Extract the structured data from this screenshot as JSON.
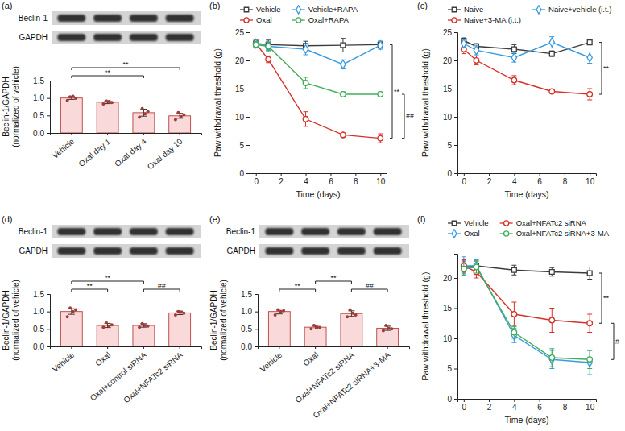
{
  "chart_data": [
    {
      "type": "bar",
      "title": "(a)",
      "blot": [
        "Beclin-1",
        "GAPDH"
      ],
      "categories": [
        "Vehicle",
        "Oxal day 1",
        "Oxal day 4",
        "Oxal day 10"
      ],
      "values": [
        1.0,
        0.88,
        0.58,
        0.49
      ],
      "errors": [
        0.04,
        0.04,
        0.1,
        0.07
      ],
      "points": [
        [
          0.93,
          1.03,
          1.05,
          0.99
        ],
        [
          0.83,
          0.92,
          0.9,
          0.87
        ],
        [
          0.45,
          0.7,
          0.55,
          0.62
        ],
        [
          0.38,
          0.58,
          0.47,
          0.52
        ]
      ],
      "color": "#f9d9d9",
      "ylabel": [
        "Beclin-1/GAPDH",
        "(normalized of vehicle)"
      ],
      "ylim": [
        0,
        1.5
      ],
      "yticks": [
        {
          "value": 0,
          "label": "0.0"
        },
        0.5,
        {
          "value": 1,
          "label": "1.0"
        },
        1.5
      ],
      "annotations": [
        {
          "text": "**",
          "from": "Vehicle",
          "to": "Oxal day 4"
        },
        {
          "text": "**",
          "from": "Vehicle",
          "to": "Oxal day 10"
        }
      ]
    },
    {
      "type": "line",
      "title": "(b)",
      "x": [
        0,
        1,
        4,
        7,
        10
      ],
      "xlim": [
        -0.5,
        10.5
      ],
      "xticks": [
        0,
        2,
        4,
        6,
        8,
        10
      ],
      "ylim": [
        0,
        25
      ],
      "yticks": [
        0,
        5,
        10,
        15,
        20,
        25
      ],
      "xlabel": "Time (days)",
      "ylabel": "Paw withdrawal threshold (g)",
      "legend": "top",
      "series": [
        {
          "name": "Vehicle",
          "color": "#3b3b3b",
          "marker": "square",
          "values": [
            23.0,
            22.8,
            22.6,
            22.7,
            22.8
          ],
          "errors": [
            0.6,
            0.8,
            0.8,
            1.2,
            0.6
          ]
        },
        {
          "name": "Oxal",
          "color": "#d7302a",
          "marker": "circle",
          "values": [
            23.0,
            20.2,
            9.6,
            6.8,
            6.2
          ],
          "errors": [
            0.5,
            0.6,
            1.3,
            0.7,
            0.8
          ]
        },
        {
          "name": "Vehicle+RAPA",
          "color": "#3a9ce0",
          "marker": "diamond",
          "values": [
            23.0,
            22.5,
            22.0,
            19.3,
            22.7
          ],
          "errors": [
            0.6,
            0.8,
            1.0,
            0.8,
            0.7
          ]
        },
        {
          "name": "Oxal+RAPA",
          "color": "#3fae5a",
          "marker": "circle",
          "values": [
            22.8,
            22.5,
            16.0,
            14.0,
            14.0
          ],
          "errors": [
            0.6,
            0.7,
            1.0,
            0.4,
            0.4
          ]
        }
      ],
      "annotations": [
        {
          "text": "**",
          "from": "Vehicle",
          "to": "Oxal"
        },
        {
          "text": "##",
          "from": "Oxal+RAPA",
          "to": "Oxal"
        }
      ]
    },
    {
      "type": "line",
      "title": "(c)",
      "x": [
        0,
        1,
        4,
        7,
        10
      ],
      "xlim": [
        -0.5,
        10.5
      ],
      "xticks": [
        0,
        2,
        4,
        6,
        8,
        10
      ],
      "ylim": [
        0,
        25
      ],
      "yticks": [
        0,
        5,
        10,
        15,
        20,
        25
      ],
      "xlabel": "Time (days)",
      "ylabel": "Paw withdrawal threshold (g)",
      "legend": "top",
      "series": [
        {
          "name": "Naive",
          "color": "#3b3b3b",
          "marker": "square",
          "values": [
            23.5,
            22.5,
            22.0,
            21.2,
            23.2
          ],
          "errors": [
            0.5,
            0.5,
            0.8,
            0.5,
            0.4
          ]
        },
        {
          "name": "Naive+3-MA (i.t.)",
          "color": "#d7302a",
          "marker": "circle",
          "values": [
            22.0,
            20.0,
            16.5,
            14.5,
            14.0
          ],
          "errors": [
            0.8,
            0.8,
            0.8,
            0.3,
            1.0
          ]
        },
        {
          "name": "Naive+vehicle (i.t.)",
          "color": "#3a9ce0",
          "marker": "diamond",
          "values": [
            23.0,
            21.8,
            20.5,
            23.2,
            20.5
          ],
          "errors": [
            0.6,
            0.8,
            0.8,
            1.0,
            1.0
          ]
        }
      ],
      "annotations": [
        {
          "text": "**",
          "from": "Naive",
          "to": "Naive+3-MA (i.t.)"
        }
      ]
    },
    {
      "type": "bar",
      "title": "(d)",
      "blot": [
        "Beclin-1",
        "GAPDH"
      ],
      "categories": [
        "Vehicle",
        "Oxal",
        "Oxal+control siRNA",
        "Oxal+NFATc2 siRNA"
      ],
      "values": [
        1.0,
        0.6,
        0.6,
        0.96
      ],
      "errors": [
        0.08,
        0.06,
        0.05,
        0.05
      ],
      "points": [
        [
          0.85,
          1.1,
          1.0,
          1.05
        ],
        [
          0.55,
          0.68,
          0.58,
          0.62
        ],
        [
          0.55,
          0.65,
          0.6,
          0.58
        ],
        [
          0.9,
          1.0,
          0.98,
          0.95
        ]
      ],
      "color": "#f9d9d9",
      "ylabel": [
        "Beclin-1/GAPDH",
        "(normalized of vehicle)"
      ],
      "ylim": [
        0,
        1.5
      ],
      "yticks": [
        {
          "value": 0,
          "label": "0.0"
        },
        0.5,
        {
          "value": 1,
          "label": "1.0"
        },
        1.5
      ],
      "annotations": [
        {
          "text": "##",
          "from": "Oxal+control siRNA",
          "to": "Oxal+NFATc2 siRNA"
        },
        {
          "text": "**",
          "from": "Vehicle",
          "to": "Oxal"
        },
        {
          "text": "**",
          "from": "Vehicle",
          "to": "Oxal+control siRNA"
        }
      ]
    },
    {
      "type": "bar",
      "title": "(e)",
      "blot": [
        "Beclin-1",
        "GAPDH"
      ],
      "categories": [
        "Vehicle",
        "Oxal",
        "Oxal+NFATc2 siRNA",
        "Oxal+NFATc2 siRNA+3-MA"
      ],
      "values": [
        1.0,
        0.55,
        0.94,
        0.52
      ],
      "errors": [
        0.07,
        0.05,
        0.08,
        0.06
      ],
      "points": [
        [
          0.9,
          1.05,
          1.0,
          1.02
        ],
        [
          0.5,
          0.6,
          0.55,
          0.54
        ],
        [
          0.85,
          1.05,
          0.95,
          0.9
        ],
        [
          0.45,
          0.6,
          0.52,
          0.5
        ]
      ],
      "color": "#f9d9d9",
      "ylabel": [
        "Beclin-1/GAPDH",
        "(normalized of vehicle)"
      ],
      "ylim": [
        0,
        1.5
      ],
      "yticks": [
        {
          "value": 0,
          "label": "0.0"
        },
        0.5,
        {
          "value": 1,
          "label": "1.0"
        },
        1.5
      ],
      "annotations": [
        {
          "text": "**",
          "from": "Vehicle",
          "to": "Oxal"
        },
        {
          "text": "##",
          "from": "Oxal+NFATc2 siRNA",
          "to": "Oxal+NFATc2 siRNA+3-MA"
        },
        {
          "text": "**",
          "from": "Oxal",
          "to": "Oxal+NFATc2 siRNA"
        }
      ]
    },
    {
      "type": "line",
      "title": "(f)",
      "x": [
        0,
        1,
        4,
        7,
        10
      ],
      "xlim": [
        -0.5,
        10.5
      ],
      "xticks": [
        0,
        2,
        4,
        6,
        8,
        10
      ],
      "ylim": [
        0,
        24
      ],
      "yticks": [
        0,
        5,
        10,
        15,
        20
      ],
      "xlabel": "Time (days)",
      "ylabel": "Paw withdrawal threshold (g)",
      "legend": "top",
      "series": [
        {
          "name": "Vehicle",
          "color": "#3b3b3b",
          "marker": "square",
          "values": [
            21.8,
            22.0,
            21.3,
            21.0,
            20.8
          ],
          "errors": [
            1.0,
            0.8,
            0.8,
            0.7,
            1.0
          ]
        },
        {
          "name": "Oxal",
          "color": "#3a9ce0",
          "marker": "diamond",
          "values": [
            22.0,
            22.0,
            10.5,
            6.5,
            6.0
          ],
          "errors": [
            1.5,
            1.0,
            1.2,
            1.5,
            2.0
          ]
        },
        {
          "name": "Oxal+NFATc2 siRNA",
          "color": "#d7302a",
          "marker": "circle",
          "values": [
            22.0,
            21.0,
            14.0,
            13.0,
            12.5
          ],
          "errors": [
            1.0,
            1.0,
            2.0,
            2.0,
            1.5
          ]
        },
        {
          "name": "Oxal+NFATc2 siRNA+3-MA",
          "color": "#3fae5a",
          "marker": "circle",
          "values": [
            21.5,
            21.8,
            11.0,
            6.8,
            6.5
          ],
          "errors": [
            1.0,
            1.0,
            1.0,
            1.5,
            1.5
          ]
        }
      ],
      "annotations": [
        {
          "text": "**",
          "from": "Vehicle",
          "to": "Oxal+NFATc2 siRNA"
        },
        {
          "text": "#",
          "from": "Oxal+NFATc2 siRNA",
          "to": "Oxal+NFATc2 siRNA+3-MA"
        }
      ]
    }
  ]
}
